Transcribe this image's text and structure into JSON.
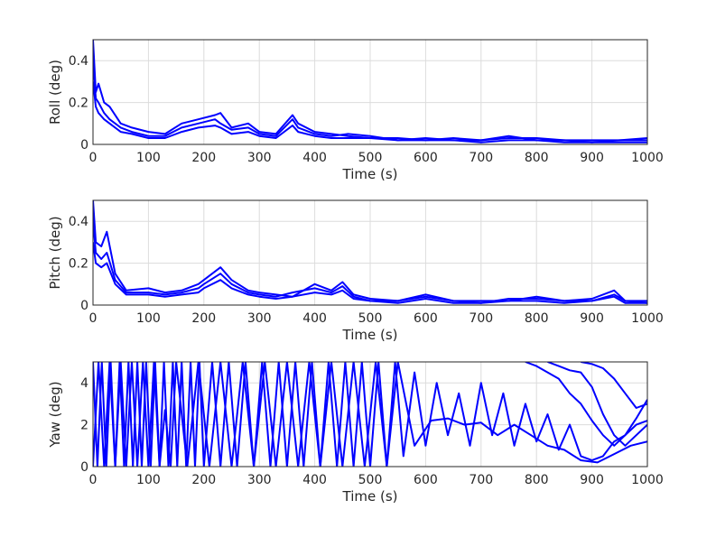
{
  "chart_data": [
    {
      "type": "line",
      "ylabel": "Roll (deg)",
      "xlabel": "Time (s)",
      "xlim": [
        0,
        1000
      ],
      "ylim": [
        0,
        0.5
      ],
      "xticks": [
        "0",
        "100",
        "200",
        "300",
        "400",
        "500",
        "600",
        "700",
        "800",
        "900",
        "1000"
      ],
      "yticks": [
        "0",
        "0.2",
        "0.4"
      ],
      "grid": true,
      "color": "#0000ff",
      "series": [
        {
          "x": [
            0,
            5,
            10,
            20,
            30,
            50,
            70,
            100,
            130,
            160,
            190,
            220,
            230,
            250,
            280,
            300,
            330,
            360,
            370,
            400,
            430,
            460,
            500,
            550,
            600,
            650,
            700,
            750,
            800,
            850,
            900,
            950,
            1000
          ],
          "values": [
            0.5,
            0.25,
            0.29,
            0.2,
            0.18,
            0.1,
            0.08,
            0.06,
            0.05,
            0.1,
            0.12,
            0.14,
            0.15,
            0.08,
            0.1,
            0.06,
            0.05,
            0.14,
            0.1,
            0.06,
            0.05,
            0.04,
            0.03,
            0.03,
            0.02,
            0.03,
            0.02,
            0.04,
            0.02,
            0.02,
            0.02,
            0.02,
            0.03
          ]
        },
        {
          "x": [
            0,
            5,
            10,
            20,
            30,
            50,
            70,
            100,
            130,
            160,
            190,
            220,
            230,
            250,
            280,
            300,
            330,
            360,
            370,
            400,
            430,
            460,
            500,
            550,
            600,
            650,
            700,
            750,
            800,
            850,
            900,
            950,
            1000
          ],
          "values": [
            0.4,
            0.22,
            0.2,
            0.15,
            0.12,
            0.08,
            0.06,
            0.04,
            0.04,
            0.08,
            0.1,
            0.12,
            0.1,
            0.07,
            0.08,
            0.05,
            0.04,
            0.12,
            0.08,
            0.05,
            0.04,
            0.05,
            0.04,
            0.02,
            0.03,
            0.02,
            0.02,
            0.03,
            0.03,
            0.02,
            0.01,
            0.02,
            0.02
          ]
        },
        {
          "x": [
            0,
            5,
            10,
            20,
            30,
            50,
            70,
            100,
            130,
            160,
            190,
            220,
            230,
            250,
            280,
            300,
            330,
            360,
            370,
            400,
            430,
            460,
            500,
            550,
            600,
            650,
            700,
            750,
            800,
            850,
            900,
            950,
            1000
          ],
          "values": [
            0.3,
            0.18,
            0.15,
            0.12,
            0.1,
            0.06,
            0.05,
            0.03,
            0.03,
            0.06,
            0.08,
            0.09,
            0.08,
            0.05,
            0.06,
            0.04,
            0.03,
            0.09,
            0.06,
            0.04,
            0.03,
            0.03,
            0.03,
            0.02,
            0.02,
            0.02,
            0.01,
            0.02,
            0.02,
            0.01,
            0.01,
            0.01,
            0.01
          ]
        }
      ]
    },
    {
      "type": "line",
      "ylabel": "Pitch (deg)",
      "xlabel": "Time (s)",
      "xlim": [
        0,
        1000
      ],
      "ylim": [
        0,
        0.5
      ],
      "xticks": [
        "0",
        "100",
        "200",
        "300",
        "400",
        "500",
        "600",
        "700",
        "800",
        "900",
        "1000"
      ],
      "yticks": [
        "0",
        "0.2",
        "0.4"
      ],
      "grid": true,
      "color": "#0000ff",
      "series": [
        {
          "x": [
            0,
            5,
            15,
            25,
            40,
            60,
            100,
            130,
            160,
            190,
            200,
            230,
            250,
            280,
            300,
            330,
            360,
            400,
            430,
            450,
            470,
            500,
            550,
            600,
            650,
            700,
            750,
            800,
            850,
            900,
            940,
            960,
            1000
          ],
          "values": [
            0.5,
            0.3,
            0.28,
            0.35,
            0.15,
            0.07,
            0.08,
            0.06,
            0.07,
            0.1,
            0.12,
            0.18,
            0.12,
            0.07,
            0.06,
            0.05,
            0.04,
            0.1,
            0.07,
            0.11,
            0.05,
            0.03,
            0.02,
            0.05,
            0.02,
            0.02,
            0.02,
            0.04,
            0.02,
            0.03,
            0.07,
            0.02,
            0.02
          ]
        },
        {
          "x": [
            0,
            5,
            15,
            25,
            40,
            60,
            100,
            130,
            160,
            190,
            200,
            230,
            250,
            280,
            300,
            330,
            360,
            400,
            430,
            450,
            470,
            500,
            550,
            600,
            650,
            700,
            750,
            800,
            850,
            900,
            940,
            960,
            1000
          ],
          "values": [
            0.4,
            0.25,
            0.22,
            0.25,
            0.12,
            0.06,
            0.06,
            0.05,
            0.06,
            0.08,
            0.1,
            0.15,
            0.1,
            0.06,
            0.05,
            0.04,
            0.06,
            0.08,
            0.06,
            0.09,
            0.04,
            0.02,
            0.02,
            0.04,
            0.02,
            0.01,
            0.03,
            0.03,
            0.02,
            0.02,
            0.05,
            0.02,
            0.01
          ]
        },
        {
          "x": [
            0,
            5,
            15,
            25,
            40,
            60,
            100,
            130,
            160,
            190,
            200,
            230,
            250,
            280,
            300,
            330,
            360,
            400,
            430,
            450,
            470,
            500,
            550,
            600,
            650,
            700,
            750,
            800,
            850,
            900,
            940,
            960,
            1000
          ],
          "values": [
            0.3,
            0.2,
            0.18,
            0.2,
            0.1,
            0.05,
            0.05,
            0.04,
            0.05,
            0.06,
            0.08,
            0.12,
            0.08,
            0.05,
            0.04,
            0.03,
            0.04,
            0.06,
            0.05,
            0.07,
            0.03,
            0.02,
            0.01,
            0.03,
            0.01,
            0.01,
            0.02,
            0.02,
            0.01,
            0.02,
            0.04,
            0.01,
            0.01
          ]
        }
      ]
    },
    {
      "type": "line",
      "ylabel": "Yaw (deg)",
      "xlabel": "Time (s)",
      "xlim": [
        0,
        1000
      ],
      "ylim": [
        0,
        5
      ],
      "xticks": [
        "0",
        "100",
        "200",
        "300",
        "400",
        "500",
        "600",
        "700",
        "800",
        "900",
        "1000"
      ],
      "yticks": [
        "0",
        "2",
        "4"
      ],
      "grid": true,
      "color": "#0000ff",
      "series": [
        {
          "x": [
            0,
            8,
            16,
            24,
            32,
            40,
            48,
            56,
            64,
            72,
            80,
            88,
            96,
            104,
            112,
            120,
            128,
            136,
            144,
            152,
            160,
            168,
            176,
            184,
            192,
            200,
            215,
            230,
            245,
            260,
            275,
            290,
            305,
            320,
            335,
            350,
            365,
            380,
            395,
            410,
            425,
            440,
            455,
            470,
            485,
            500,
            515,
            530,
            545,
            560,
            580,
            600,
            620,
            640,
            660,
            680,
            700,
            720,
            740,
            760,
            780,
            800,
            820,
            840,
            860,
            880,
            900,
            920,
            940,
            960,
            980,
            1000
          ],
          "values": [
            5,
            0,
            5,
            0,
            5,
            0,
            5,
            0,
            5,
            0,
            5,
            0,
            5,
            0,
            5,
            0,
            5,
            0,
            5,
            0,
            5,
            0,
            5,
            0,
            5,
            0,
            5,
            0,
            5,
            0,
            5,
            0,
            5,
            0,
            5,
            0,
            5,
            0,
            5,
            0,
            5,
            0,
            5,
            0,
            5,
            0,
            5,
            0,
            5,
            0.5,
            4.5,
            1,
            4,
            1.5,
            3.5,
            1,
            4,
            1.5,
            3.5,
            1,
            3,
            1.2,
            2.5,
            0.8,
            2,
            0.5,
            0.3,
            0.5,
            1.2,
            1.5,
            2,
            2.2
          ]
        },
        {
          "x": [
            0,
            10,
            20,
            30,
            40,
            50,
            60,
            70,
            80,
            90,
            100,
            110,
            120,
            130,
            140,
            150,
            170,
            190,
            210,
            230,
            250,
            270,
            290,
            310,
            330,
            350,
            370,
            390,
            410,
            430,
            450,
            470,
            490,
            510,
            530,
            550,
            580,
            610,
            640,
            670,
            700,
            730,
            760,
            790,
            820,
            850,
            880,
            910,
            940,
            970,
            1000
          ],
          "values": [
            0,
            5,
            0,
            5,
            0,
            5,
            0,
            5,
            0,
            5,
            0,
            5,
            0,
            2.7,
            0,
            5,
            0,
            5,
            0,
            5,
            0,
            5,
            0,
            5,
            0,
            5,
            0,
            5,
            0,
            5,
            0,
            5,
            0,
            5,
            0,
            5,
            1,
            2.2,
            2.3,
            2,
            2.1,
            1.5,
            2,
            1.5,
            1,
            0.8,
            0.3,
            0.2,
            0.6,
            1,
            1.2
          ]
        },
        {
          "x": [
            780,
            800,
            820,
            840,
            860,
            880,
            900,
            920,
            940,
            960,
            980,
            1000
          ],
          "values": [
            5,
            4.8,
            4.5,
            4.2,
            3.5,
            3,
            2.2,
            1.5,
            1,
            1.5,
            2.3,
            3.2
          ]
        },
        {
          "x": [
            820,
            840,
            860,
            880,
            900,
            920,
            940,
            960,
            980,
            1000
          ],
          "values": [
            5,
            4.8,
            4.6,
            4.5,
            3.8,
            2.5,
            1.5,
            1,
            1.5,
            2
          ]
        },
        {
          "x": [
            880,
            900,
            920,
            940,
            960,
            980,
            1000
          ],
          "values": [
            5,
            4.9,
            4.7,
            4.2,
            3.5,
            2.8,
            3
          ]
        }
      ]
    }
  ]
}
